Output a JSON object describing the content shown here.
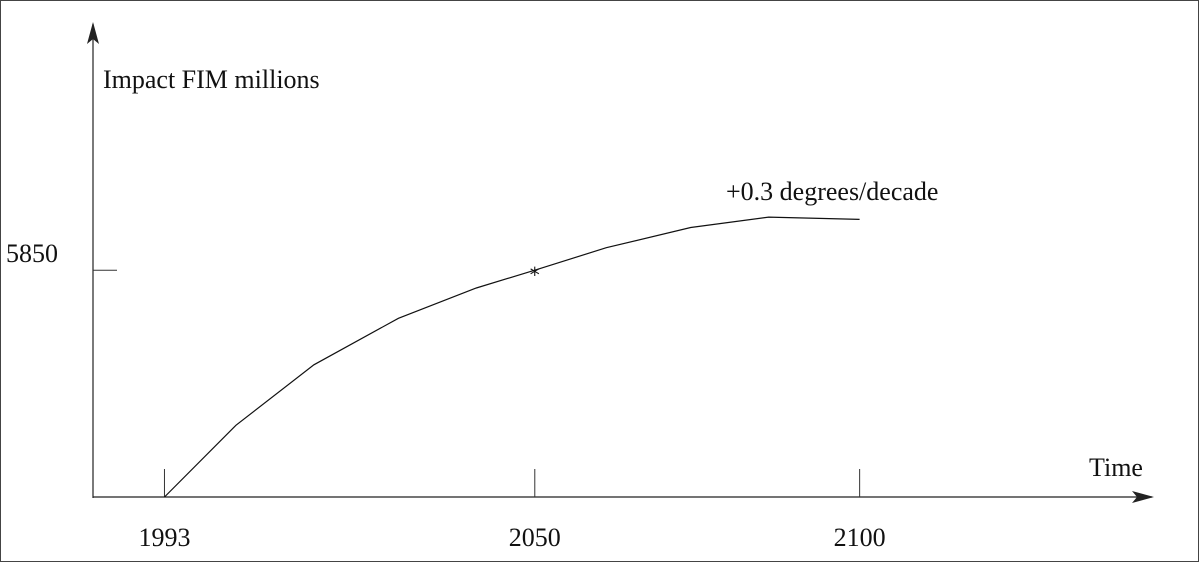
{
  "chart_data": {
    "type": "line",
    "title": "",
    "xlabel": "Time",
    "ylabel": "Impact FIM millions",
    "x_ticks": [
      "1993",
      "2050",
      "2100"
    ],
    "y_ticks": [
      "5850"
    ],
    "x_range": [
      1982,
      2145
    ],
    "y_range": [
      0,
      12200
    ],
    "series": [
      {
        "name": "+0.3 degrees/decade",
        "points": [
          [
            1993,
            0
          ],
          [
            2004,
            1850
          ],
          [
            2016,
            3410
          ],
          [
            2029,
            4610
          ],
          [
            2041,
            5390
          ],
          [
            2050,
            5850
          ],
          [
            2061,
            6430
          ],
          [
            2074,
            6950
          ],
          [
            2086,
            7220
          ],
          [
            2100,
            7160
          ]
        ]
      }
    ],
    "marker": {
      "x": 2050,
      "y": 5850,
      "symbol": "*"
    },
    "grid": false,
    "legend": "none"
  }
}
